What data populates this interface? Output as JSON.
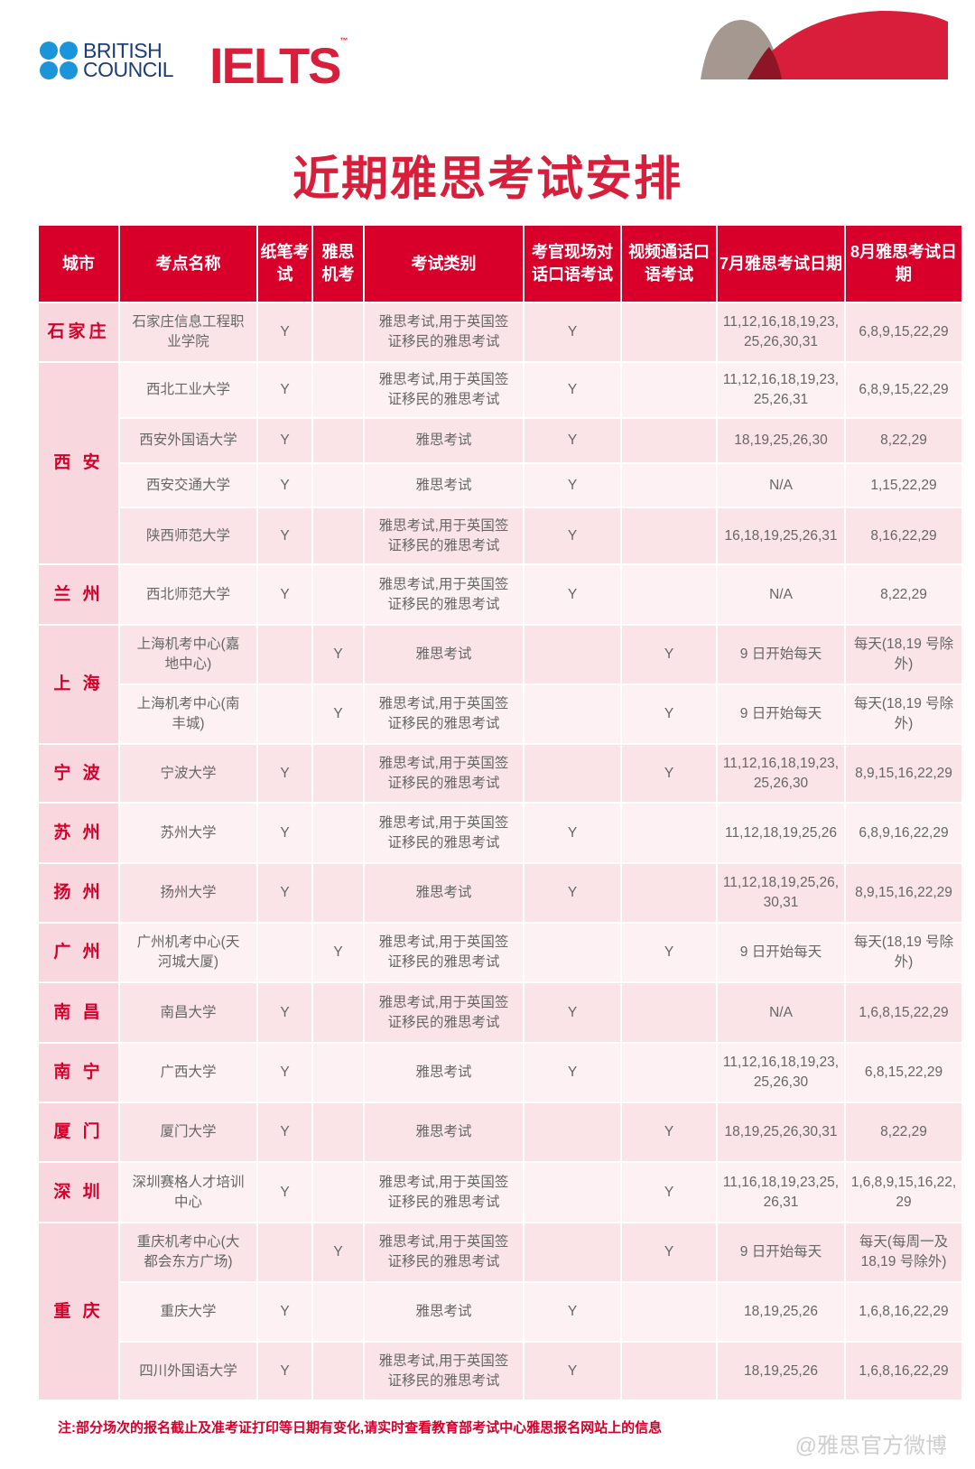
{
  "brand": {
    "bc_line1": "BRITISH",
    "bc_line2": "COUNCIL",
    "ielts": "IELTS",
    "tm": "™",
    "bc_color": "#1a95d9",
    "ielts_color": "#d81e3a"
  },
  "title": "近期雅思考试安排",
  "colors": {
    "header": "#d8002b",
    "city_bg": "#f8d7de",
    "row_a": "#fae4e8",
    "row_b": "#fdf1f3"
  },
  "table": {
    "headers": [
      "城市",
      "考点名称",
      "纸笔考试",
      "雅思机考",
      "考试类别",
      "考官现场对话口语考试",
      "视频通话口语考试",
      "7月雅思考试日期",
      "8月雅思考试日期"
    ],
    "groups": [
      {
        "city": "石家庄",
        "rows": [
          {
            "venue": "石家庄信息工程职业学院",
            "paper": "Y",
            "cd": "",
            "type": "雅思考试,用于英国签证移民的雅思考试",
            "f2f": "Y",
            "video": "",
            "jul": "11,12,16,18,19,23,25,26,30,31",
            "aug": "6,8,9,15,22,29"
          }
        ]
      },
      {
        "city": "西 安",
        "rows": [
          {
            "venue": "西北工业大学",
            "paper": "Y",
            "cd": "",
            "type": "雅思考试,用于英国签证移民的雅思考试",
            "f2f": "Y",
            "video": "",
            "jul": "11,12,16,18,19,23,25,26,31",
            "aug": "6,8,9,15,22,29"
          },
          {
            "venue": "西安外国语大学",
            "paper": "Y",
            "cd": "",
            "type": "雅思考试",
            "f2f": "Y",
            "video": "",
            "jul": "18,19,25,26,30",
            "aug": "8,22,29"
          },
          {
            "venue": "西安交通大学",
            "paper": "Y",
            "cd": "",
            "type": "雅思考试",
            "f2f": "Y",
            "video": "",
            "jul": "N/A",
            "aug": "1,15,22,29"
          },
          {
            "venue": "陕西师范大学",
            "paper": "Y",
            "cd": "",
            "type": "雅思考试,用于英国签证移民的雅思考试",
            "f2f": "Y",
            "video": "",
            "jul": "16,18,19,25,26,31",
            "aug": "8,16,22,29"
          }
        ]
      },
      {
        "city": "兰 州",
        "rows": [
          {
            "venue": "西北师范大学",
            "paper": "Y",
            "cd": "",
            "type": "雅思考试,用于英国签证移民的雅思考试",
            "f2f": "Y",
            "video": "",
            "jul": "N/A",
            "aug": "8,22,29"
          }
        ]
      },
      {
        "city": "上 海",
        "rows": [
          {
            "venue": "上海机考中心(嘉地中心)",
            "paper": "",
            "cd": "Y",
            "type": "雅思考试",
            "f2f": "",
            "video": "Y",
            "jul": "9 日开始每天",
            "aug": "每天(18,19 号除外)"
          },
          {
            "venue": "上海机考中心(南丰城)",
            "paper": "",
            "cd": "Y",
            "type": "雅思考试,用于英国签证移民的雅思考试",
            "f2f": "",
            "video": "Y",
            "jul": "9 日开始每天",
            "aug": "每天(18,19 号除外)"
          }
        ]
      },
      {
        "city": "宁 波",
        "rows": [
          {
            "venue": "宁波大学",
            "paper": "Y",
            "cd": "",
            "type": "雅思考试,用于英国签证移民的雅思考试",
            "f2f": "",
            "video": "Y",
            "jul": "11,12,16,18,19,23,25,26,30",
            "aug": "8,9,15,16,22,29"
          }
        ]
      },
      {
        "city": "苏 州",
        "rows": [
          {
            "venue": "苏州大学",
            "paper": "Y",
            "cd": "",
            "type": "雅思考试,用于英国签证移民的雅思考试",
            "f2f": "Y",
            "video": "",
            "jul": "11,12,18,19,25,26",
            "aug": "6,8,9,16,22,29"
          }
        ]
      },
      {
        "city": "扬 州",
        "rows": [
          {
            "venue": "扬州大学",
            "paper": "Y",
            "cd": "",
            "type": "雅思考试",
            "f2f": "Y",
            "video": "",
            "jul": "11,12,18,19,25,26,30,31",
            "aug": "8,9,15,16,22,29"
          }
        ]
      },
      {
        "city": "广 州",
        "rows": [
          {
            "venue": "广州机考中心(天河城大厦)",
            "paper": "",
            "cd": "Y",
            "type": "雅思考试,用于英国签证移民的雅思考试",
            "f2f": "",
            "video": "Y",
            "jul": "9 日开始每天",
            "aug": "每天(18,19 号除外)"
          }
        ]
      },
      {
        "city": "南 昌",
        "rows": [
          {
            "venue": "南昌大学",
            "paper": "Y",
            "cd": "",
            "type": "雅思考试,用于英国签证移民的雅思考试",
            "f2f": "Y",
            "video": "",
            "jul": "N/A",
            "aug": "1,6,8,15,22,29"
          }
        ]
      },
      {
        "city": "南 宁",
        "rows": [
          {
            "venue": "广西大学",
            "paper": "Y",
            "cd": "",
            "type": "雅思考试",
            "f2f": "Y",
            "video": "",
            "jul": "11,12,16,18,19,23,25,26,30",
            "aug": "6,8,15,22,29"
          }
        ]
      },
      {
        "city": "厦 门",
        "rows": [
          {
            "venue": "厦门大学",
            "paper": "Y",
            "cd": "",
            "type": "雅思考试",
            "f2f": "",
            "video": "Y",
            "jul": "18,19,25,26,30,31",
            "aug": "8,22,29"
          }
        ]
      },
      {
        "city": "深 圳",
        "rows": [
          {
            "venue": "深圳赛格人才培训中心",
            "paper": "Y",
            "cd": "",
            "type": "雅思考试,用于英国签证移民的雅思考试",
            "f2f": "",
            "video": "Y",
            "jul": "11,16,18,19,23,25,26,31",
            "aug": "1,6,8,9,15,16,22,29"
          }
        ]
      },
      {
        "city": "重 庆",
        "rows": [
          {
            "venue": "重庆机考中心(大都会东方广场)",
            "paper": "",
            "cd": "Y",
            "type": "雅思考试,用于英国签证移民的雅思考试",
            "f2f": "",
            "video": "Y",
            "jul": "9 日开始每天",
            "aug": "每天(每周一及18,19 号除外)"
          },
          {
            "venue": "重庆大学",
            "paper": "Y",
            "cd": "",
            "type": "雅思考试",
            "f2f": "Y",
            "video": "",
            "jul": "18,19,25,26",
            "aug": "1,6,8,16,22,29"
          },
          {
            "venue": "四川外国语大学",
            "paper": "Y",
            "cd": "",
            "type": "雅思考试,用于英国签证移民的雅思考试",
            "f2f": "Y",
            "video": "",
            "jul": "18,19,25,26",
            "aug": "1,6,8,16,22,29"
          }
        ]
      }
    ]
  },
  "note": "注:部分场次的报名截止及准考证打印等日期有变化,请实时查看教育部考试中心雅思报名网站上的信息",
  "watermark": "@雅思官方微博"
}
